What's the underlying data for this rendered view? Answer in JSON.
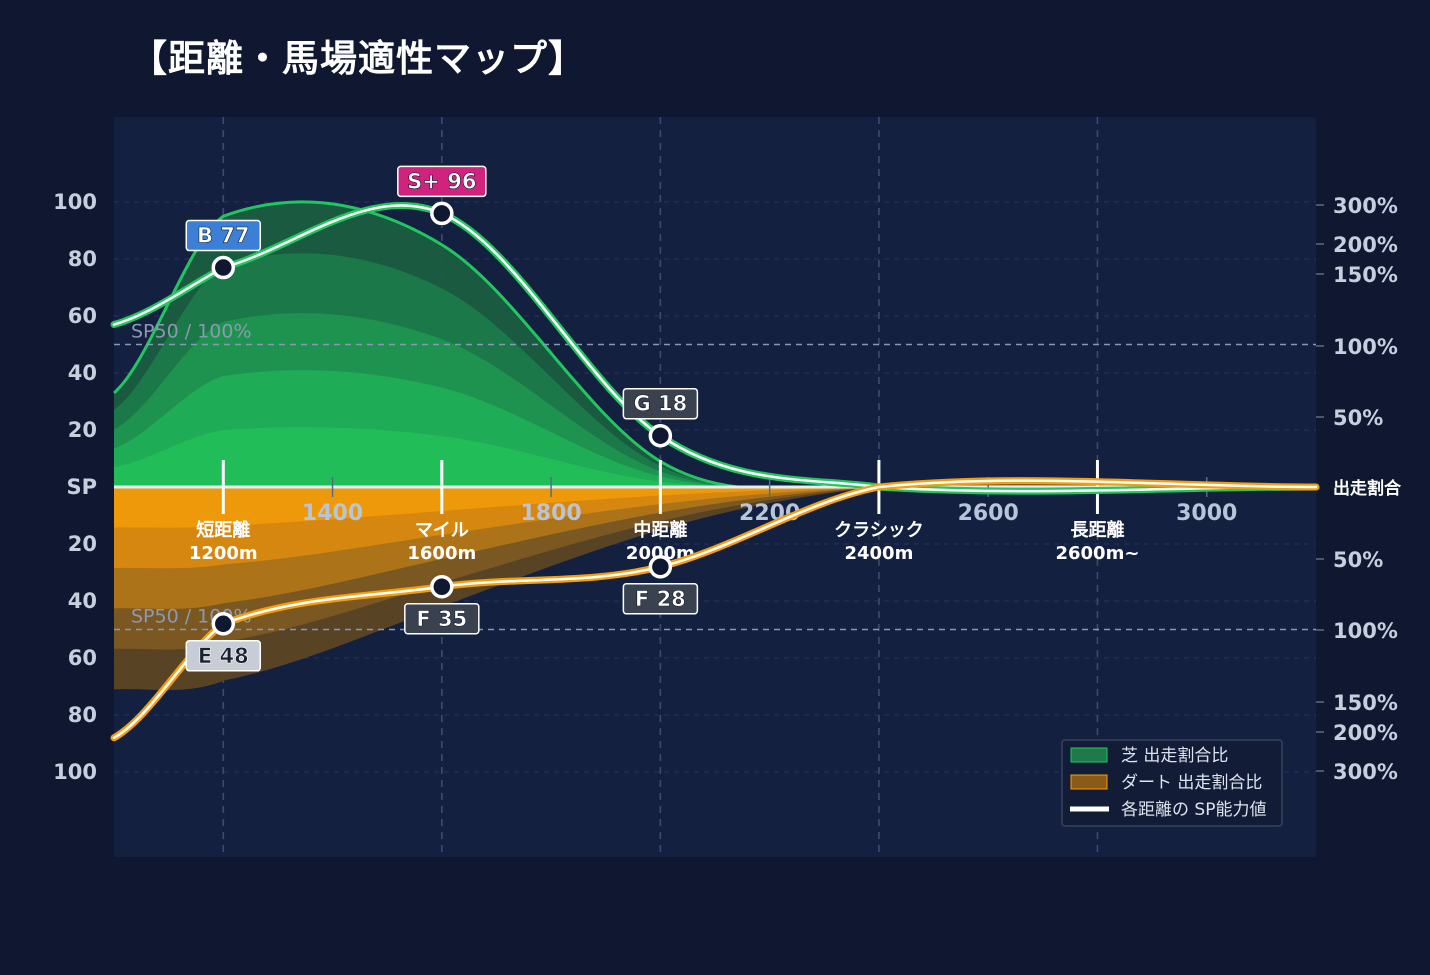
{
  "title": "【距離・馬場適性マップ】",
  "chart_data": {
    "type": "area",
    "x_ticks": [
      1400,
      1800,
      2200,
      2600,
      3000
    ],
    "x_range": [
      1000,
      3200
    ],
    "y_ticks_left": [
      "100",
      "80",
      "60",
      "40",
      "20",
      "SP",
      "20",
      "40",
      "60",
      "80",
      "100"
    ],
    "y_range": [
      -100,
      100
    ],
    "right_axis_label": "出走割合",
    "right_ticks_top": [
      "300%",
      "200%",
      "150%",
      "100%",
      "50%"
    ],
    "right_ticks_bottom": [
      "50%",
      "100%",
      "150%",
      "200%",
      "300%"
    ],
    "reference_label": "SP50 / 100%",
    "categories": [
      {
        "name": "短距離",
        "range": "1200m",
        "x": 1200
      },
      {
        "name": "マイル",
        "range": "1600m",
        "x": 1600
      },
      {
        "name": "中距離",
        "range": "2000m",
        "x": 2000
      },
      {
        "name": "クラシック",
        "range": "2400m",
        "x": 2400
      },
      {
        "name": "長距離",
        "range": "2600m~",
        "x": 2800
      }
    ],
    "turf": {
      "sp_points": [
        {
          "x": 1200,
          "grade": "B",
          "value": 77,
          "color": "#3b7fd6"
        },
        {
          "x": 1600,
          "grade": "S+",
          "value": 96,
          "color": "#d0237e"
        },
        {
          "x": 2000,
          "grade": "G",
          "value": 18,
          "color": "#3a4250"
        }
      ],
      "sp_curve": [
        [
          1000,
          57
        ],
        [
          1200,
          77
        ],
        [
          1600,
          96
        ],
        [
          2000,
          18
        ],
        [
          2400,
          0
        ],
        [
          3200,
          0
        ]
      ],
      "ratio_outline": [
        [
          1000,
          33
        ],
        [
          1200,
          95
        ],
        [
          1600,
          85
        ],
        [
          2000,
          9
        ],
        [
          2400,
          0
        ],
        [
          3200,
          0
        ]
      ]
    },
    "dirt": {
      "sp_points": [
        {
          "x": 1200,
          "grade": "E",
          "value": 48,
          "color": "#c8ccd4"
        },
        {
          "x": 1600,
          "grade": "F",
          "value": 35,
          "color": "#3a4250"
        },
        {
          "x": 2000,
          "grade": "F",
          "value": 28,
          "color": "#3a4250"
        }
      ],
      "sp_curve": [
        [
          1000,
          88
        ],
        [
          1200,
          48
        ],
        [
          1600,
          35
        ],
        [
          2000,
          28
        ],
        [
          2400,
          0
        ],
        [
          3200,
          0
        ]
      ],
      "ratio_outline": [
        [
          1000,
          71
        ],
        [
          1200,
          68
        ],
        [
          1600,
          42
        ],
        [
          2000,
          15
        ],
        [
          2400,
          0
        ],
        [
          3200,
          0
        ]
      ]
    },
    "legend": [
      {
        "label": "芝 出走割合比",
        "color": "#1f7a4a"
      },
      {
        "label": "ダート 出走割合比",
        "color": "#8a5a18"
      },
      {
        "label": "各距離の SP能力値",
        "color": "#ffffff"
      }
    ],
    "colors": {
      "turf": "#22c55e",
      "dirt": "#f59e0b",
      "plot_bg": "#132040",
      "page_bg": "#0f1830"
    }
  }
}
